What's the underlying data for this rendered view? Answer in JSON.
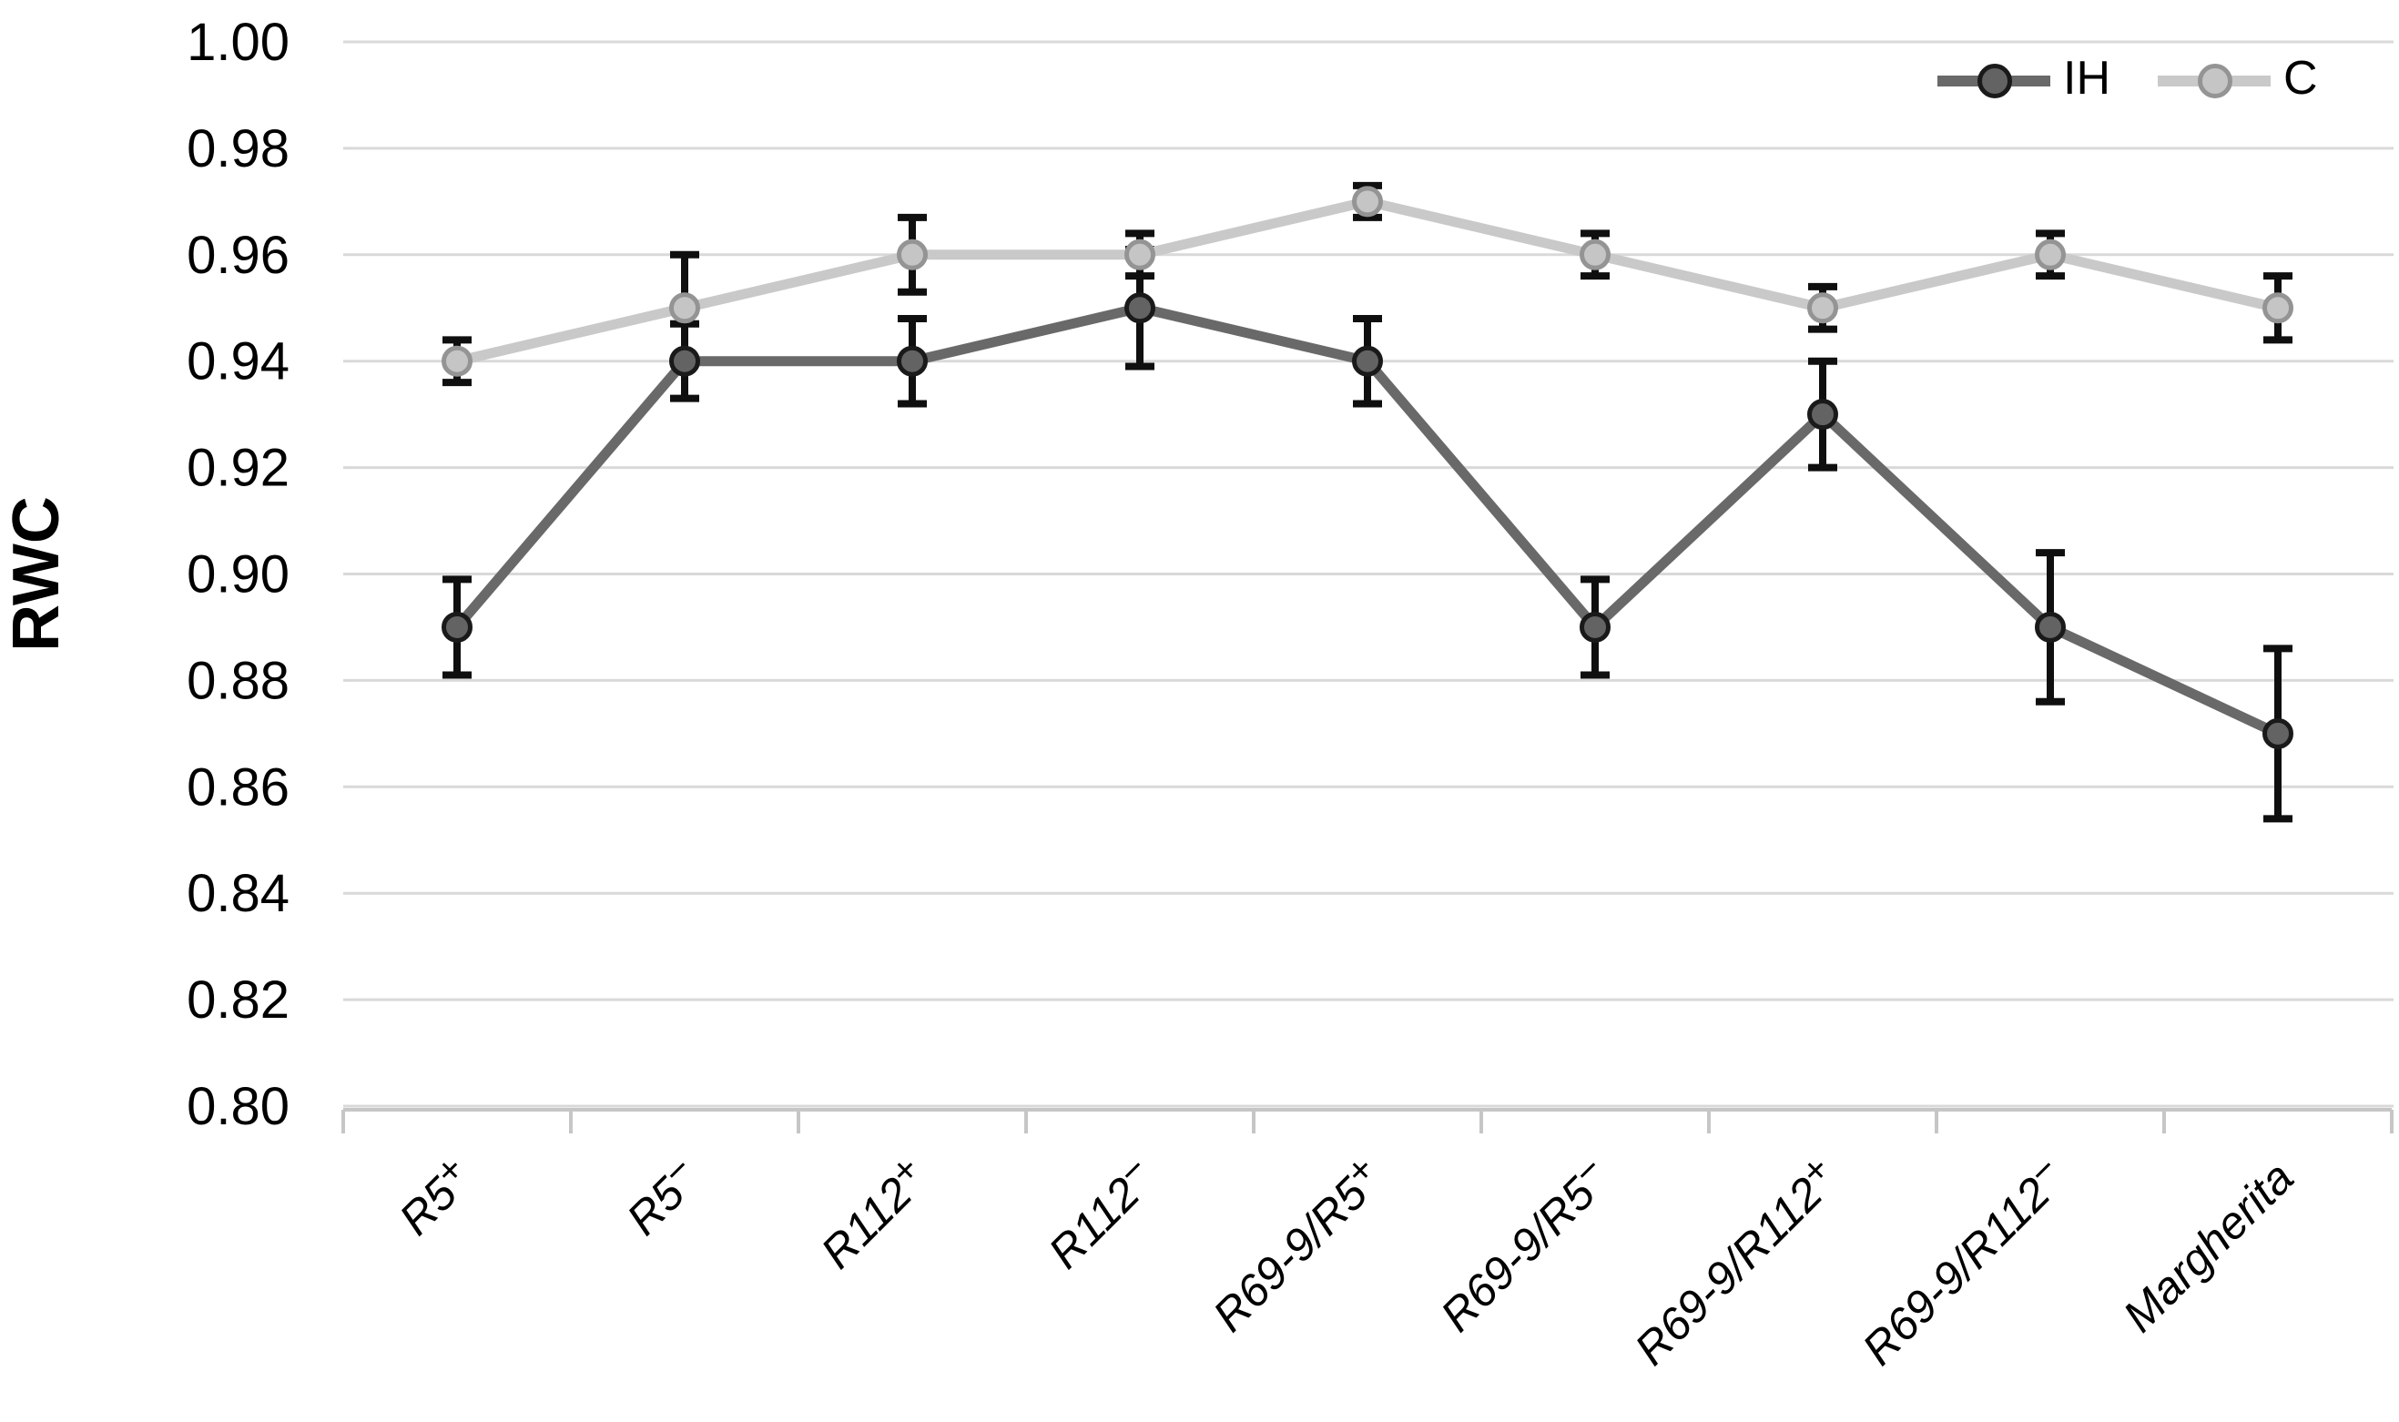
{
  "chart_data": {
    "type": "line",
    "title": "",
    "xlabel": "",
    "ylabel": "RWC",
    "categories": [
      "R5+",
      "R5−",
      "R112+",
      "R112−",
      "R69-9/R5+",
      "R69-9/R5−",
      "R69-9/R112+",
      "R69-9/R112−",
      "Margherita"
    ],
    "y_tick_labels": [
      "1.00",
      "0.98",
      "0.96",
      "0.94",
      "0.92",
      "0.90",
      "0.88",
      "0.86",
      "0.84",
      "0.82",
      "0.80"
    ],
    "ylim": [
      0.8,
      1.0
    ],
    "ytick_step": 0.02,
    "grid": true,
    "legend_position": "top-right",
    "series": [
      {
        "name": "IH",
        "line_color": "#696969",
        "marker_fill": "#636363",
        "marker_stroke": "#1a1a1a",
        "values": [
          0.89,
          0.94,
          0.94,
          0.95,
          0.94,
          0.89,
          0.93,
          0.89,
          0.87
        ],
        "errors": [
          0.009,
          0.007,
          0.008,
          0.011,
          0.008,
          0.009,
          0.01,
          0.014,
          0.016
        ]
      },
      {
        "name": "C",
        "line_color": "#c9c9c9",
        "marker_fill": "#c5c5c5",
        "marker_stroke": "#949494",
        "values": [
          0.94,
          0.95,
          0.96,
          0.96,
          0.97,
          0.96,
          0.95,
          0.96,
          0.95
        ],
        "errors": [
          0.004,
          0.01,
          0.007,
          0.004,
          0.003,
          0.004,
          0.004,
          0.004,
          0.006
        ]
      }
    ],
    "error_bar_color": "#0f0f0f",
    "gridline_color": "#d9d9d9",
    "axis_color": "#c6c6c6",
    "text_color": "#000000"
  }
}
